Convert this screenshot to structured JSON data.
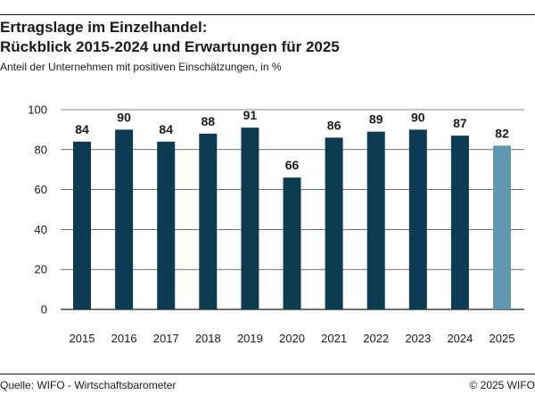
{
  "chart_data": {
    "type": "bar",
    "title_line1": "Ertragslage im Einzelhandel:",
    "title_line2": "Rückblick 2015-2024 und Erwartungen für 2025",
    "subtitle": "Anteil der Unternehmen mit positiven Einschätzungen, in %",
    "categories": [
      "2015",
      "2016",
      "2017",
      "2018",
      "2019",
      "2020",
      "2021",
      "2022",
      "2023",
      "2024",
      "2025"
    ],
    "values": [
      84,
      90,
      84,
      88,
      91,
      66,
      86,
      89,
      90,
      87,
      82
    ],
    "data_labels": [
      "84",
      "90",
      "84",
      "88",
      "91",
      "66",
      "86",
      "89",
      "90",
      "87",
      "82"
    ],
    "y_ticks": [
      "0",
      "20",
      "40",
      "60",
      "80",
      "100"
    ],
    "ylim": [
      0,
      100
    ],
    "grid": true,
    "colors": {
      "actual": "#0d3b53",
      "expectation": "#5f97b0",
      "grid": "#1a1a1a"
    }
  },
  "footer": {
    "source": "Quelle: WIFO - Wirtschaftsbarometer",
    "copyright": "© 2025 WIFO"
  }
}
